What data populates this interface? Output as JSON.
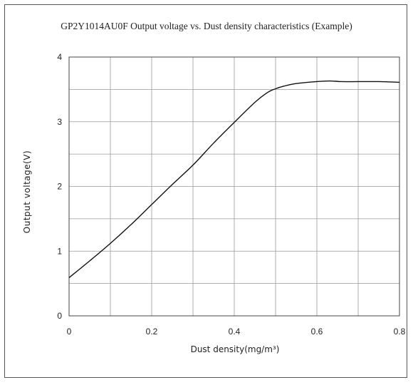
{
  "chart_data": {
    "type": "line",
    "title": "GP2Y1014AU0F Output voltage vs. Dust density characteristics (Example)",
    "xlabel": "Dust density(mg/m³)",
    "ylabel": "Output voltage(V)",
    "xlim": [
      0,
      0.8
    ],
    "ylim": [
      0,
      4
    ],
    "xticks": [
      "0",
      "0.2",
      "0.4",
      "0.6",
      "0.8"
    ],
    "yticks": [
      "0",
      "1",
      "2",
      "3",
      "4"
    ],
    "grid": true,
    "series": [
      {
        "x": [
          0,
          0.05,
          0.1,
          0.15,
          0.2,
          0.25,
          0.3,
          0.35,
          0.4,
          0.45,
          0.48,
          0.5,
          0.52,
          0.55,
          0.6,
          0.63,
          0.66,
          0.7,
          0.75,
          0.8
        ],
        "y": [
          0.59,
          0.85,
          1.12,
          1.41,
          1.72,
          2.03,
          2.33,
          2.67,
          2.99,
          3.3,
          3.45,
          3.51,
          3.55,
          3.59,
          3.62,
          3.63,
          3.62,
          3.62,
          3.62,
          3.61
        ]
      }
    ]
  }
}
